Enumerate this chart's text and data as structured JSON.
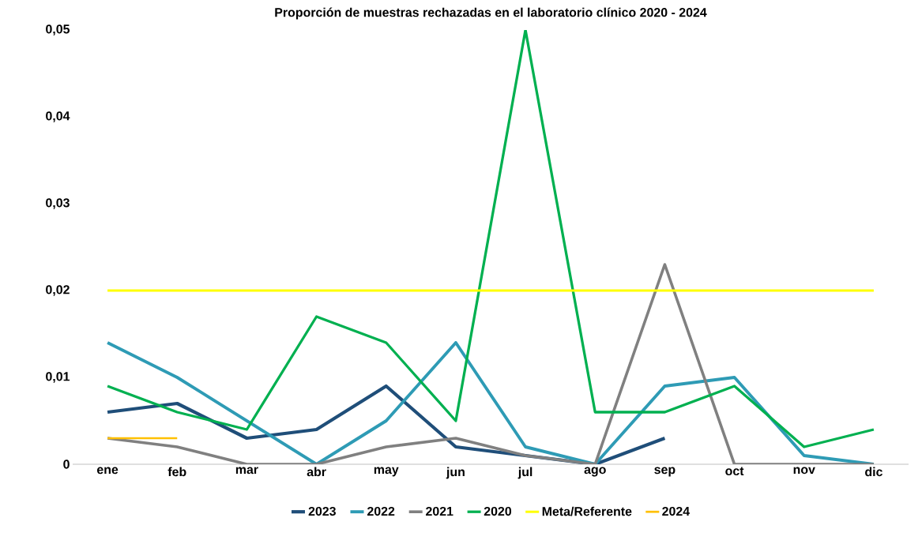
{
  "chart_data": {
    "type": "line",
    "title": "Proporción de muestras rechazadas en el laboratorio clínico 2020 - 2024",
    "categories": [
      "ene",
      "feb",
      "mar",
      "abr",
      "may",
      "jun",
      "jul",
      "ago",
      "sep",
      "oct",
      "nov",
      "dic"
    ],
    "ylim": [
      0,
      0.05
    ],
    "yticks": [
      {
        "value": 0,
        "label": "0"
      },
      {
        "value": 0.01,
        "label": "0,01"
      },
      {
        "value": 0.02,
        "label": "0,02"
      },
      {
        "value": 0.03,
        "label": "0,03"
      },
      {
        "value": 0.04,
        "label": "0,04"
      },
      {
        "value": 0.05,
        "label": "0,05"
      }
    ],
    "legend": "bottom",
    "series": [
      {
        "name": "2023",
        "color": "#1f4e79",
        "values": [
          0.006,
          0.007,
          0.003,
          0.004,
          0.009,
          0.002,
          0.001,
          0,
          0.003,
          null,
          null,
          null
        ]
      },
      {
        "name": "2022",
        "color": "#2e9bb5",
        "values": [
          0.014,
          0.01,
          0.005,
          0,
          0.005,
          0.014,
          0.002,
          0,
          0.009,
          0.01,
          0.001,
          0
        ]
      },
      {
        "name": "2021",
        "color": "#808080",
        "values": [
          0.003,
          0.002,
          0,
          0,
          0.002,
          0.003,
          0.001,
          0,
          0.023,
          0,
          0,
          0
        ]
      },
      {
        "name": "2020",
        "color": "#00b050",
        "values": [
          0.009,
          0.006,
          0.004,
          0.017,
          0.014,
          0.005,
          0.05,
          0.006,
          0.006,
          0.009,
          0.002,
          0.004
        ]
      },
      {
        "name": "Meta/Referente",
        "color": "#ffff00",
        "values": [
          0.02,
          0.02,
          0.02,
          0.02,
          0.02,
          0.02,
          0.02,
          0.02,
          0.02,
          0.02,
          0.02,
          0.02
        ]
      },
      {
        "name": "2024",
        "color": "#ffc000",
        "values": [
          0.003,
          0.003,
          null,
          null,
          null,
          null,
          null,
          null,
          null,
          null,
          null,
          null
        ]
      }
    ]
  }
}
